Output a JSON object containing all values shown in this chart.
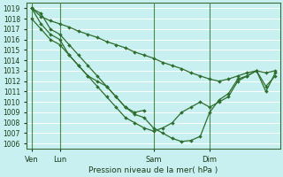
{
  "title": "Pression niveau de la mer( hPa )",
  "bg_color": "#c8f0f0",
  "grid_color": "#ffffff",
  "line_color": "#2d6e2d",
  "sep_color": "#4a8a4a",
  "ylim": [
    1005.5,
    1019.5
  ],
  "yticks": [
    1006,
    1007,
    1008,
    1009,
    1010,
    1011,
    1012,
    1013,
    1014,
    1015,
    1016,
    1017,
    1018,
    1019
  ],
  "day_labels": [
    "Ven",
    "Lun",
    "Sam",
    "Dim"
  ],
  "day_positions": [
    0,
    3,
    13,
    19
  ],
  "xlim": [
    -0.5,
    26.5
  ],
  "xtick_minor_positions": [
    0,
    1,
    2,
    3,
    4,
    5,
    6,
    7,
    8,
    9,
    10,
    11,
    12,
    13,
    14,
    15,
    16,
    17,
    18,
    19,
    20,
    21,
    22,
    23,
    24,
    25,
    26
  ],
  "series": [
    {
      "x": [
        0,
        1,
        2,
        3,
        4,
        5,
        6,
        7,
        8,
        9,
        10,
        11,
        12,
        13,
        14,
        15,
        16,
        17,
        18,
        19,
        20,
        21,
        22,
        23,
        24,
        25,
        26
      ],
      "y": [
        1019,
        1018.2,
        1017.8,
        1017.5,
        1017.2,
        1016.8,
        1016.5,
        1016.2,
        1015.8,
        1015.5,
        1015.2,
        1014.8,
        1014.5,
        1014.2,
        1013.8,
        1013.5,
        1013.2,
        1012.8,
        1012.5,
        1012.2,
        1012.0,
        1012.2,
        1012.5,
        1012.8,
        1013.0,
        1012.8,
        1013.0
      ]
    },
    {
      "x": [
        0,
        1,
        2,
        3,
        4,
        5,
        6,
        7,
        8,
        9,
        10,
        11,
        12
      ],
      "y": [
        1019,
        1018.5,
        1017,
        1016.5,
        1015.5,
        1014.5,
        1013.5,
        1012.5,
        1011.5,
        1010.5,
        1009.5,
        1009.0,
        1009.2
      ]
    },
    {
      "x": [
        0,
        1,
        2,
        3,
        4,
        5,
        6,
        7,
        8,
        9,
        10,
        11,
        12,
        13,
        14,
        15,
        16,
        17,
        18,
        19,
        20,
        21,
        22,
        23,
        24,
        25,
        26
      ],
      "y": [
        1018,
        1017,
        1016,
        1015.5,
        1014.5,
        1013.5,
        1012.5,
        1011.5,
        1010.5,
        1009.5,
        1008.5,
        1008.0,
        1007.5,
        1007.2,
        1007.5,
        1008,
        1009,
        1009.5,
        1010,
        1009.5,
        1010,
        1010.5,
        1012,
        1012.5,
        1013,
        1011.5,
        1012.5
      ]
    },
    {
      "x": [
        0,
        1,
        2,
        3,
        4,
        5,
        6,
        7,
        8,
        9,
        10,
        11,
        12,
        13,
        14,
        15,
        16,
        17,
        18,
        19,
        20,
        21,
        22,
        23,
        24,
        25,
        26
      ],
      "y": [
        1019,
        1017.5,
        1016.5,
        1016,
        1014.5,
        1013.5,
        1012.5,
        1012.0,
        1011.5,
        1010.5,
        1009.5,
        1008.8,
        1008.5,
        1007.5,
        1007.0,
        1006.5,
        1006.2,
        1006.3,
        1006.7,
        1009.0,
        1010.2,
        1010.8,
        1012.2,
        1012.5,
        1013,
        1011,
        1012.8
      ]
    }
  ]
}
